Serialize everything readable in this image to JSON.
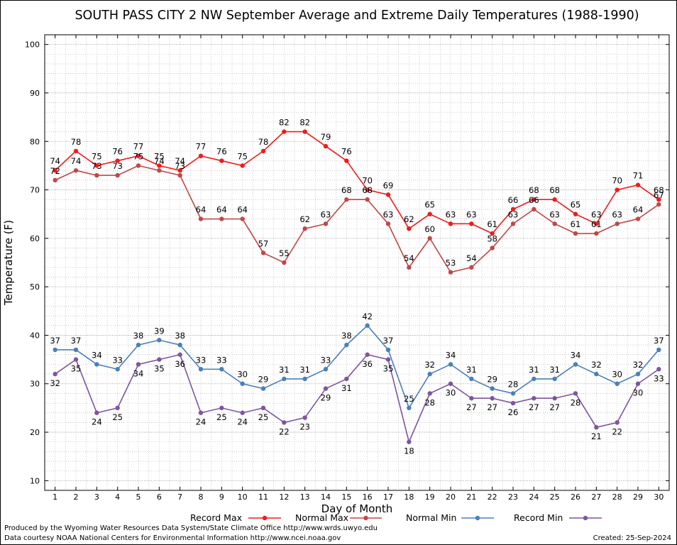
{
  "chart_data": {
    "type": "line",
    "title": "SOUTH PASS CITY 2 NW September Average and Extreme Daily Temperatures (1988-1990)",
    "xlabel": "Day of Month",
    "ylabel": "Temperature (F)",
    "x": [
      1,
      2,
      3,
      4,
      5,
      6,
      7,
      8,
      9,
      10,
      11,
      12,
      13,
      14,
      15,
      16,
      17,
      18,
      19,
      20,
      21,
      22,
      23,
      24,
      25,
      26,
      27,
      28,
      29,
      30
    ],
    "xlim": [
      0.5,
      30.5
    ],
    "ylim": [
      8,
      102
    ],
    "yticks": [
      10,
      20,
      30,
      40,
      50,
      60,
      70,
      80,
      90,
      100
    ],
    "grid": true,
    "legend": "bottom",
    "series": [
      {
        "name": "Record Max",
        "color": "#ee1c1c",
        "values": [
          74,
          78,
          75,
          76,
          77,
          75,
          74,
          77,
          76,
          75,
          78,
          82,
          82,
          79,
          76,
          70,
          69,
          62,
          65,
          63,
          63,
          61,
          66,
          68,
          68,
          65,
          63,
          70,
          71,
          68
        ]
      },
      {
        "name": "Normal Max",
        "color": "#c04848",
        "values": [
          72,
          74,
          73,
          73,
          75,
          74,
          73,
          64,
          64,
          64,
          57,
          55,
          62,
          63,
          68,
          68,
          63,
          54,
          60,
          53,
          54,
          58,
          63,
          66,
          63,
          61,
          61,
          63,
          64,
          67
        ]
      },
      {
        "name": "Normal Min",
        "color": "#4a80b8",
        "values": [
          37,
          37,
          34,
          33,
          38,
          39,
          38,
          33,
          33,
          30,
          29,
          31,
          31,
          33,
          38,
          42,
          37,
          25,
          32,
          34,
          31,
          29,
          28,
          31,
          31,
          34,
          32,
          30,
          32,
          37
        ]
      },
      {
        "name": "Record Min",
        "color": "#7f559e",
        "values": [
          32,
          35,
          24,
          25,
          34,
          35,
          36,
          24,
          25,
          24,
          25,
          22,
          23,
          29,
          31,
          36,
          35,
          18,
          28,
          30,
          27,
          27,
          26,
          27,
          27,
          28,
          21,
          22,
          30,
          33
        ]
      }
    ]
  },
  "footer": {
    "credit_line1": "Produced by the Wyoming Water Resources Data System/State Climate Office http://www.wrds.uwyo.edu",
    "credit_line2": "Data courtesy NOAA National Centers for Environmental Information http://www.ncei.noaa.gov",
    "created": "Created:  25-Sep-2024"
  }
}
